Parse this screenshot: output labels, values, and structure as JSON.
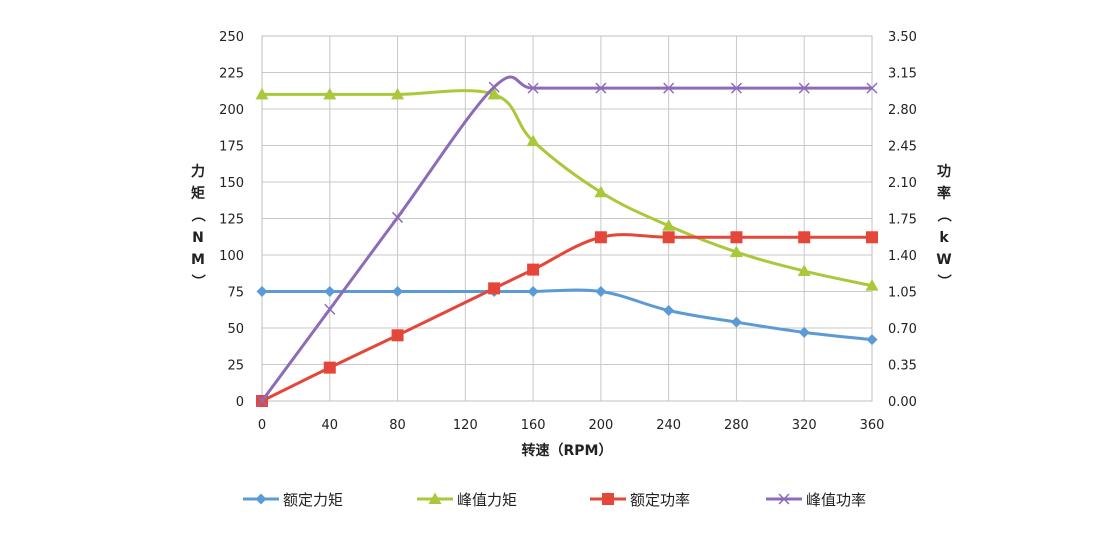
{
  "chart_data": {
    "type": "line",
    "xlabel": "转速（RPM）",
    "ylabel_left": "力矩（NM）",
    "ylabel_right": "功率（kW）",
    "x_ticks": [
      "0",
      "40",
      "80",
      "120",
      "160",
      "200",
      "240",
      "280",
      "320",
      "360"
    ],
    "y_left_ticks": [
      "0",
      "25",
      "50",
      "75",
      "100",
      "125",
      "150",
      "175",
      "200",
      "225",
      "250"
    ],
    "y_right_ticks": [
      "0.00",
      "0.35",
      "0.70",
      "1.05",
      "1.40",
      "1.75",
      "2.10",
      "2.45",
      "2.80",
      "3.15",
      "3.50"
    ],
    "xlim": [
      0,
      360
    ],
    "ylim_left": [
      0,
      250
    ],
    "ylim_right": [
      0,
      3.5
    ],
    "grid": true,
    "legend_position": "bottom",
    "series": [
      {
        "name": "额定力矩",
        "axis": "left",
        "color": "#5B9BD5",
        "marker": "diamond",
        "x": [
          0,
          40,
          80,
          137,
          160,
          200,
          240,
          280,
          320,
          360
        ],
        "values": [
          75,
          75,
          75,
          75,
          75,
          75,
          62,
          54,
          47,
          42
        ]
      },
      {
        "name": "峰值力矩",
        "axis": "left",
        "color": "#A9C83A",
        "marker": "triangle",
        "x": [
          0,
          40,
          80,
          137,
          160,
          200,
          240,
          280,
          320,
          360
        ],
        "values": [
          210,
          210,
          210,
          210,
          178,
          143,
          120,
          102,
          89,
          79
        ]
      },
      {
        "name": "额定功率",
        "axis": "right",
        "color": "#E5463A",
        "marker": "square",
        "x": [
          0,
          40,
          80,
          137,
          160,
          200,
          240,
          280,
          320,
          360
        ],
        "values": [
          0,
          0.32,
          0.63,
          1.08,
          1.26,
          1.57,
          1.57,
          1.57,
          1.57,
          1.57
        ]
      },
      {
        "name": "峰值功率",
        "axis": "right",
        "color": "#8E6BB8",
        "marker": "x",
        "x": [
          0,
          40,
          80,
          137,
          160,
          200,
          240,
          280,
          320,
          360
        ],
        "values": [
          0,
          0.88,
          1.76,
          3.01,
          3.0,
          3.0,
          3.0,
          3.0,
          3.0,
          3.0
        ]
      }
    ]
  }
}
